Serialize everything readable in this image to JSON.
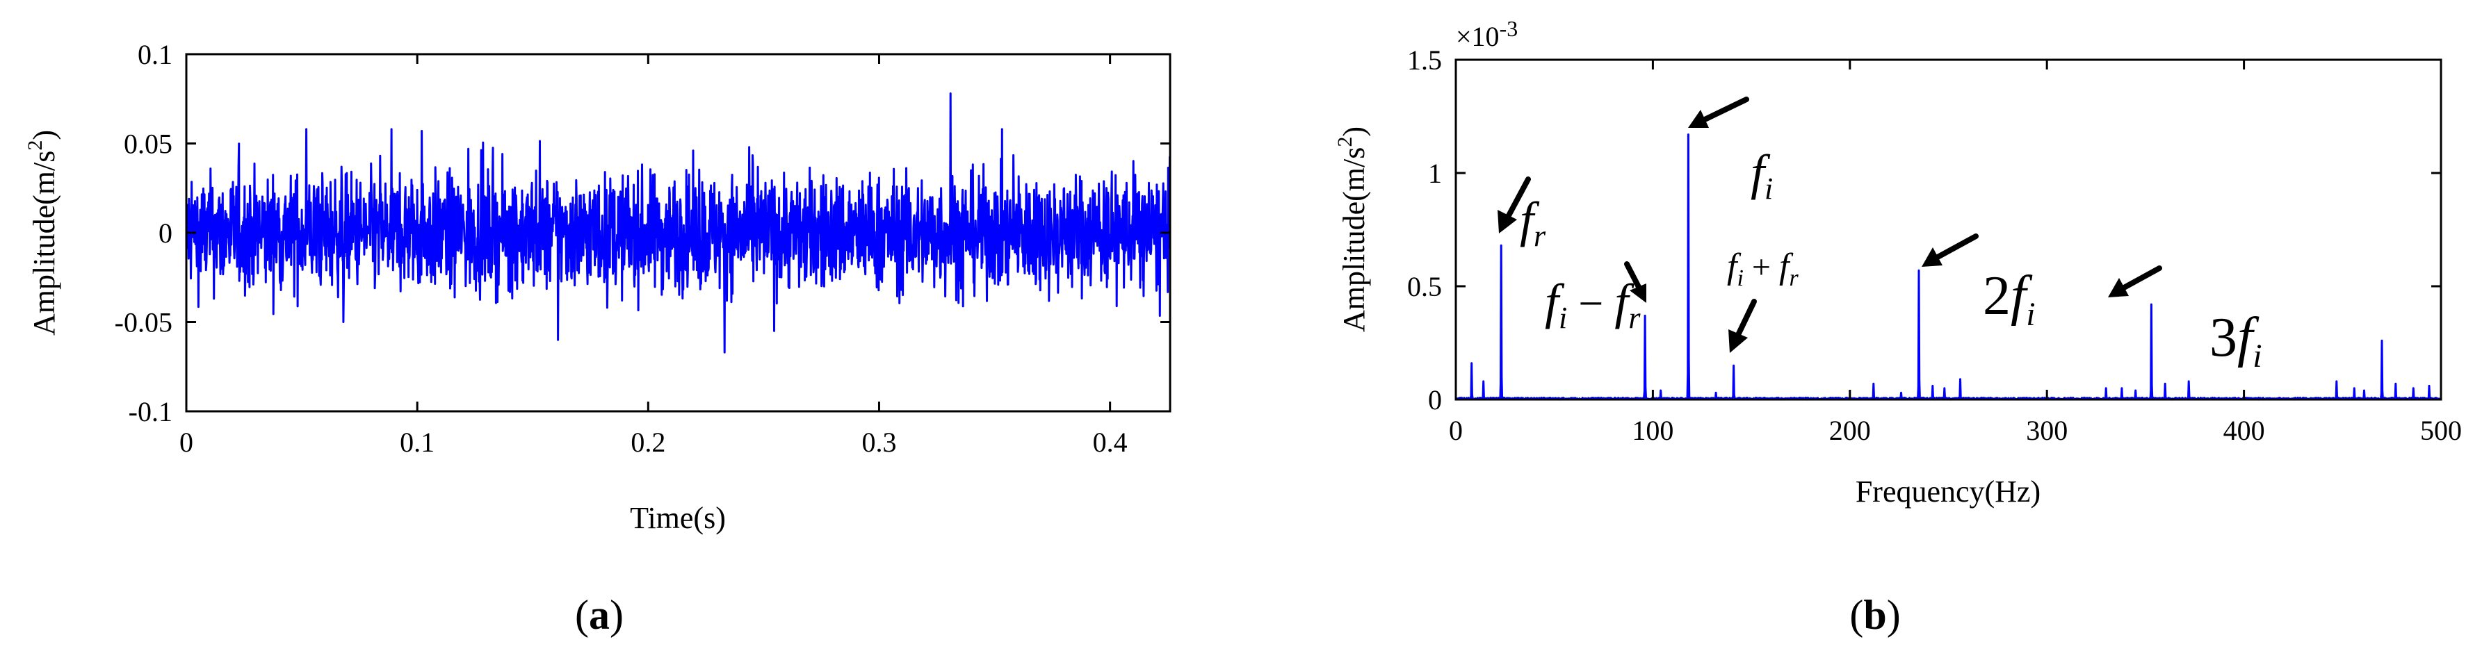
{
  "chart_data": [
    {
      "id": "a",
      "type": "line",
      "panel_label": "(a)",
      "xlabel": "Time(s)",
      "ylabel": "Amplitude(m/s^2)",
      "xlim": [
        0,
        0.426
      ],
      "ylim": [
        -0.1,
        0.1
      ],
      "xticks": [
        0,
        0.1,
        0.2,
        0.3,
        0.4
      ],
      "xtick_labels": [
        "0",
        "0.1",
        "0.2",
        "0.3",
        "0.4"
      ],
      "yticks": [
        -0.1,
        -0.05,
        0,
        0.05,
        0.1
      ],
      "ytick_labels": [
        "-0.1",
        "-0.05",
        "0",
        "0.05",
        "0.1"
      ],
      "grid": false,
      "series_color": "#0000ff",
      "signal": {
        "kind": "vibration time signal",
        "typical_amplitude": 0.035,
        "peak_events": [
          {
            "x": 0.331,
            "y": 0.078
          },
          {
            "x": 0.233,
            "y": -0.067
          },
          {
            "x": 0.161,
            "y": -0.06
          },
          {
            "x": 0.068,
            "y": -0.05
          },
          {
            "x": 0.102,
            "y": 0.057
          },
          {
            "x": 0.052,
            "y": 0.058
          }
        ]
      }
    },
    {
      "id": "b",
      "type": "line",
      "panel_label": "(b)",
      "xlabel": "Frequency(Hz)",
      "ylabel": "Amplitude(m/s^2)",
      "scale_label": "×10-3",
      "xlim": [
        0,
        500
      ],
      "ylim": [
        0,
        1.5
      ],
      "xticks": [
        0,
        100,
        200,
        300,
        400,
        500
      ],
      "xtick_labels": [
        "0",
        "100",
        "200",
        "300",
        "400",
        "500"
      ],
      "yticks": [
        0,
        0.5,
        1,
        1.5
      ],
      "ytick_labels": [
        "0",
        "0.5",
        "1",
        "1.5"
      ],
      "grid": false,
      "series_color": "#0000ff",
      "peaks": [
        {
          "x": 8,
          "y": 0.16
        },
        {
          "x": 14,
          "y": 0.08
        },
        {
          "x": 23,
          "y": 0.68
        },
        {
          "x": 96,
          "y": 0.37
        },
        {
          "x": 104,
          "y": 0.04
        },
        {
          "x": 118,
          "y": 1.17
        },
        {
          "x": 132,
          "y": 0.03
        },
        {
          "x": 141,
          "y": 0.15
        },
        {
          "x": 212,
          "y": 0.07
        },
        {
          "x": 226,
          "y": 0.03
        },
        {
          "x": 235,
          "y": 0.57
        },
        {
          "x": 242,
          "y": 0.06
        },
        {
          "x": 248,
          "y": 0.05
        },
        {
          "x": 256,
          "y": 0.09
        },
        {
          "x": 330,
          "y": 0.05
        },
        {
          "x": 338,
          "y": 0.05
        },
        {
          "x": 345,
          "y": 0.04
        },
        {
          "x": 353,
          "y": 0.42
        },
        {
          "x": 360,
          "y": 0.07
        },
        {
          "x": 372,
          "y": 0.08
        },
        {
          "x": 447,
          "y": 0.08
        },
        {
          "x": 456,
          "y": 0.05
        },
        {
          "x": 461,
          "y": 0.04
        },
        {
          "x": 470,
          "y": 0.26
        },
        {
          "x": 477,
          "y": 0.07
        },
        {
          "x": 486,
          "y": 0.05
        },
        {
          "x": 494,
          "y": 0.06
        }
      ],
      "annotations": [
        {
          "label": "fr",
          "points_to": {
            "x": 23,
            "y": 0.68
          }
        },
        {
          "label": "fi - fr",
          "points_to": {
            "x": 96,
            "y": 0.37
          }
        },
        {
          "label": "fi",
          "points_to": {
            "x": 118,
            "y": 1.17
          }
        },
        {
          "label": "fi + fr",
          "points_to": {
            "x": 141,
            "y": 0.15
          }
        },
        {
          "label": "2fi",
          "points_to": {
            "x": 235,
            "y": 0.57
          }
        },
        {
          "label": "3fi",
          "points_to": {
            "x": 353,
            "y": 0.42
          }
        }
      ]
    }
  ]
}
